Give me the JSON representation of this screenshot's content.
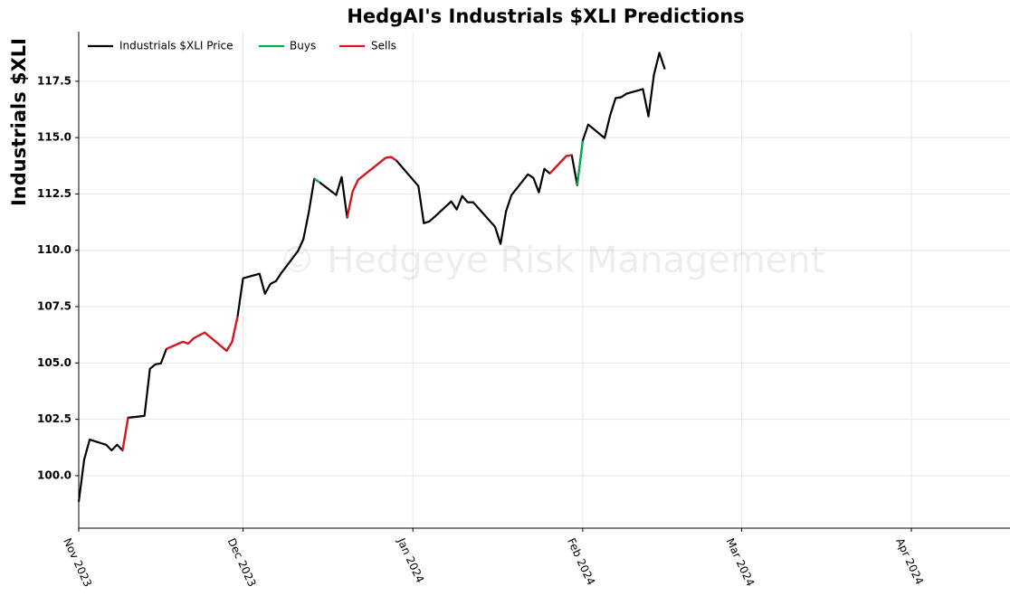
{
  "chart_data": {
    "type": "line",
    "title": "HedgAI's Industrials $XLI Predictions",
    "ylabel": "Industrials $XLI",
    "annotation": "© Hedgeye Risk Management",
    "legend": "upper left",
    "grid": true,
    "xlim": [
      "2023-11-01",
      "2024-04-19"
    ],
    "xticks": [
      {
        "value": "2023-11-01",
        "label": "Nov 2023"
      },
      {
        "value": "2023-12-01",
        "label": "Dec 2023"
      },
      {
        "value": "2024-01-01",
        "label": "Jan 2024"
      },
      {
        "value": "2024-02-01",
        "label": "Feb 2024"
      },
      {
        "value": "2024-03-01",
        "label": "Mar 2024"
      },
      {
        "value": "2024-04-01",
        "label": "Apr 2024"
      }
    ],
    "ylim": [
      97.67,
      119.7
    ],
    "yticks": [
      {
        "value": 100,
        "label": "100.0"
      },
      {
        "value": 102.5,
        "label": "102.5"
      },
      {
        "value": 105,
        "label": "105.0"
      },
      {
        "value": 107.5,
        "label": "107.5"
      },
      {
        "value": 110,
        "label": "110.0"
      },
      {
        "value": 112.5,
        "label": "112.5"
      },
      {
        "value": 115,
        "label": "115.0"
      },
      {
        "value": 117.5,
        "label": "117.5"
      }
    ],
    "x": [
      "2023-11-01",
      "2023-11-02",
      "2023-11-03",
      "2023-11-06",
      "2023-11-07",
      "2023-11-08",
      "2023-11-09",
      "2023-11-10",
      "2023-11-13",
      "2023-11-14",
      "2023-11-15",
      "2023-11-16",
      "2023-11-17",
      "2023-11-20",
      "2023-11-21",
      "2023-11-22",
      "2023-11-24",
      "2023-11-28",
      "2023-11-29",
      "2023-11-30",
      "2023-12-01",
      "2023-12-04",
      "2023-12-05",
      "2023-12-06",
      "2023-12-07",
      "2023-12-08",
      "2023-12-11",
      "2023-12-12",
      "2023-12-13",
      "2023-12-14",
      "2023-12-15",
      "2023-12-18",
      "2023-12-19",
      "2023-12-20",
      "2023-12-21",
      "2023-12-22",
      "2023-12-26",
      "2023-12-27",
      "2023-12-28",
      "2023-12-29",
      "2024-01-02",
      "2024-01-03",
      "2024-01-04",
      "2024-01-05",
      "2024-01-08",
      "2024-01-09",
      "2024-01-10",
      "2024-01-11",
      "2024-01-12",
      "2024-01-16",
      "2024-01-17",
      "2024-01-18",
      "2024-01-19",
      "2024-01-22",
      "2024-01-23",
      "2024-01-24",
      "2024-01-25",
      "2024-01-26",
      "2024-01-29",
      "2024-01-30",
      "2024-01-31",
      "2024-02-01",
      "2024-02-02",
      "2024-02-05",
      "2024-02-06",
      "2024-02-07",
      "2024-02-08",
      "2024-02-09",
      "2024-02-12",
      "2024-02-13",
      "2024-02-14",
      "2024-02-15",
      "2024-02-16"
    ],
    "series": [
      {
        "name": "Industrials $XLI Price",
        "color": "#000000",
        "values": [
          98.84,
          100.72,
          101.6,
          101.37,
          101.12,
          101.37,
          101.12,
          102.57,
          102.65,
          104.74,
          104.94,
          104.98,
          105.62,
          105.94,
          105.86,
          106.1,
          106.35,
          105.54,
          105.94,
          107.07,
          108.76,
          108.96,
          108.07,
          108.51,
          108.63,
          109.0,
          109.96,
          110.48,
          111.69,
          113.17,
          113.01,
          112.45,
          113.25,
          111.45,
          112.61,
          113.13,
          113.9,
          114.1,
          114.14,
          113.98,
          112.85,
          111.2,
          111.28,
          111.49,
          112.17,
          111.81,
          112.41,
          112.13,
          112.13,
          111.04,
          110.28,
          111.73,
          112.45,
          113.37,
          113.21,
          112.57,
          113.61,
          113.41,
          114.18,
          114.22,
          112.89,
          114.86,
          115.58,
          114.98,
          115.98,
          116.75,
          116.79,
          116.95,
          117.15,
          115.94,
          117.79,
          118.76,
          118.03
        ]
      },
      {
        "name": "Buys",
        "color": "#00b050",
        "values": [
          null,
          null,
          null,
          null,
          null,
          null,
          null,
          null,
          null,
          null,
          null,
          null,
          null,
          null,
          null,
          null,
          null,
          null,
          null,
          null,
          null,
          null,
          null,
          null,
          null,
          null,
          null,
          null,
          null,
          113.17,
          113.01,
          null,
          null,
          null,
          null,
          null,
          null,
          null,
          null,
          null,
          null,
          null,
          null,
          null,
          null,
          null,
          null,
          null,
          null,
          null,
          null,
          null,
          null,
          null,
          null,
          null,
          null,
          null,
          null,
          null,
          112.89,
          114.86,
          null,
          null,
          null,
          null,
          null,
          null,
          null,
          null,
          null,
          null,
          null
        ]
      },
      {
        "name": "Sells",
        "color": "#e0141e",
        "values": [
          null,
          null,
          null,
          null,
          null,
          null,
          101.12,
          102.57,
          null,
          null,
          null,
          null,
          105.62,
          105.94,
          105.86,
          106.1,
          106.35,
          105.54,
          105.94,
          107.07,
          null,
          null,
          null,
          null,
          null,
          null,
          null,
          null,
          null,
          null,
          null,
          null,
          null,
          111.45,
          112.61,
          113.13,
          113.9,
          114.1,
          114.14,
          113.98,
          null,
          null,
          null,
          null,
          null,
          null,
          null,
          null,
          null,
          null,
          null,
          null,
          null,
          null,
          null,
          null,
          null,
          113.41,
          114.18,
          114.22,
          null,
          null,
          null,
          null,
          null,
          null,
          null,
          null,
          null,
          null,
          null,
          null,
          null
        ]
      }
    ]
  }
}
